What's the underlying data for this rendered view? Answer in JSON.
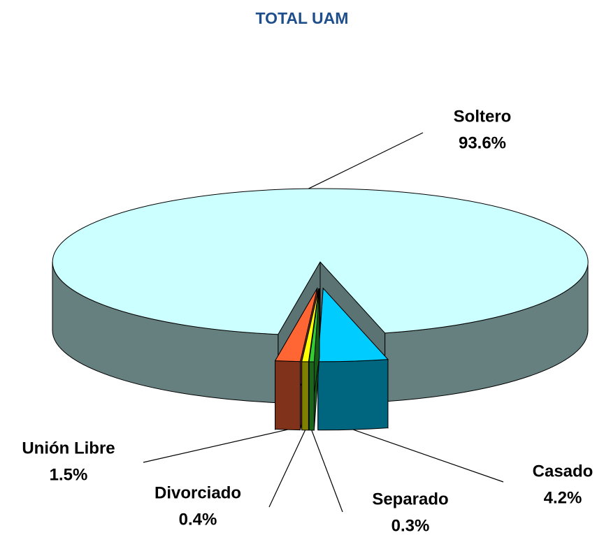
{
  "chart_data": {
    "type": "pie",
    "title": "TOTAL UAM",
    "categories": [
      "Casado",
      "Separado",
      "Divorciado",
      "Unión Libre",
      "Soltero"
    ],
    "values": [
      4.2,
      0.3,
      0.4,
      1.5,
      93.6
    ],
    "value_labels": [
      "4.2%",
      "0.3%",
      "0.4%",
      "1.5%",
      "93.6%"
    ],
    "colors": [
      "#00ccff",
      "#33cc33",
      "#ffff00",
      "#ff6633",
      "#ccffff"
    ]
  }
}
